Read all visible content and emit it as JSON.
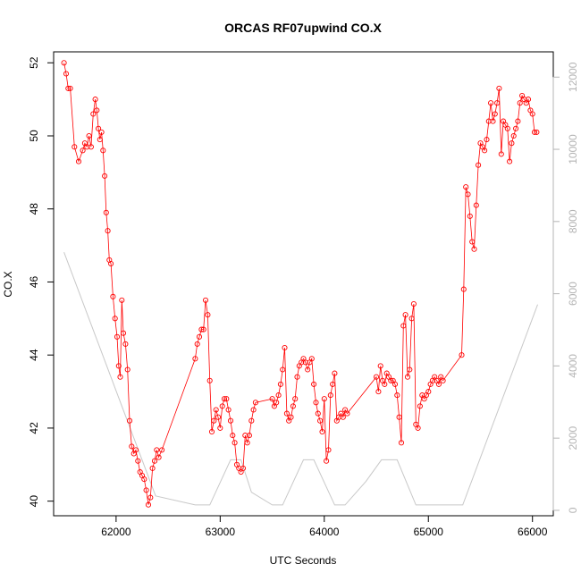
{
  "chart_data": {
    "type": "line",
    "title": "ORCAS RF07upwind CO.X",
    "xlabel": "UTC Seconds",
    "ylabel": "CO.X",
    "xlim": [
      61400,
      66200
    ],
    "ylim": [
      39.6,
      52.3
    ],
    "y2lim": [
      -150,
      12700
    ],
    "x_ticks": [
      62000,
      63000,
      64000,
      65000,
      66000
    ],
    "y_ticks": [
      40,
      42,
      44,
      46,
      48,
      50,
      52
    ],
    "y2_ticks": [
      0,
      2000,
      4000,
      6000,
      8000,
      10000,
      12000
    ],
    "grid": false,
    "colors": {
      "primary": "#ff0000",
      "secondary": "#c8c8c8",
      "axis": "#000000",
      "right_axis": "#b4b4b4"
    },
    "series": [
      {
        "axis": "left",
        "marker": "open-circle",
        "color": "#ff0000",
        "x": [
          61500,
          61520,
          61540,
          61560,
          61600,
          61640,
          61680,
          61700,
          61720,
          61740,
          61760,
          61780,
          61800,
          61815,
          61830,
          61845,
          61860,
          61875,
          61890,
          61905,
          61920,
          61935,
          61950,
          61970,
          61990,
          62010,
          62025,
          62040,
          62055,
          62070,
          62090,
          62110,
          62130,
          62150,
          62170,
          62190,
          62210,
          62230,
          62250,
          62270,
          62290,
          62310,
          62330,
          62350,
          62370,
          62390,
          62410,
          62440,
          62760,
          62780,
          62800,
          62820,
          62840,
          62860,
          62880,
          62900,
          62920,
          62940,
          62960,
          62980,
          63000,
          63020,
          63040,
          63060,
          63080,
          63100,
          63120,
          63140,
          63160,
          63180,
          63200,
          63220,
          63240,
          63260,
          63280,
          63300,
          63320,
          63340,
          63500,
          63520,
          63540,
          63560,
          63580,
          63600,
          63620,
          63640,
          63660,
          63680,
          63700,
          63720,
          63740,
          63760,
          63780,
          63800,
          63820,
          63840,
          63860,
          63880,
          63900,
          63920,
          63940,
          63960,
          63980,
          64000,
          64020,
          64040,
          64060,
          64080,
          64100,
          64120,
          64140,
          64160,
          64180,
          64200,
          64220,
          64500,
          64520,
          64540,
          64560,
          64580,
          64600,
          64620,
          64640,
          64660,
          64680,
          64700,
          64720,
          64740,
          64760,
          64780,
          64800,
          64820,
          64840,
          64860,
          64880,
          64900,
          64920,
          64940,
          64960,
          64980,
          65000,
          65020,
          65040,
          65060,
          65080,
          65100,
          65120,
          65140,
          65320,
          65340,
          65360,
          65380,
          65400,
          65420,
          65440,
          65460,
          65480,
          65500,
          65520,
          65540,
          65560,
          65580,
          65600,
          65620,
          65640,
          65660,
          65680,
          65700,
          65720,
          65740,
          65760,
          65780,
          65800,
          65820,
          65840,
          65860,
          65880,
          65900,
          65920,
          65940,
          65960,
          65980,
          66000,
          66020,
          66040
        ],
        "values": [
          52.0,
          51.7,
          51.3,
          51.3,
          49.7,
          49.3,
          49.6,
          49.8,
          49.7,
          50.0,
          49.7,
          50.6,
          51.0,
          50.7,
          50.2,
          49.9,
          50.1,
          49.6,
          48.9,
          47.9,
          47.4,
          46.6,
          46.5,
          45.6,
          45.0,
          44.5,
          43.7,
          43.4,
          45.5,
          44.6,
          44.3,
          43.6,
          42.2,
          41.5,
          41.3,
          41.4,
          41.1,
          40.8,
          40.7,
          40.6,
          40.3,
          39.9,
          40.1,
          40.9,
          41.1,
          41.4,
          41.2,
          41.4,
          43.9,
          44.3,
          44.5,
          44.7,
          44.7,
          45.5,
          45.1,
          43.3,
          41.9,
          42.2,
          42.5,
          42.3,
          42.0,
          42.6,
          42.8,
          42.8,
          42.5,
          42.2,
          41.8,
          41.6,
          41.0,
          40.9,
          40.8,
          40.9,
          41.8,
          41.6,
          41.8,
          42.2,
          42.5,
          42.7,
          42.8,
          42.6,
          42.7,
          42.9,
          43.2,
          43.6,
          44.2,
          42.4,
          42.2,
          42.3,
          42.6,
          42.8,
          43.4,
          43.7,
          43.8,
          43.9,
          43.8,
          43.6,
          43.8,
          43.9,
          43.2,
          42.7,
          42.4,
          42.2,
          41.9,
          42.8,
          41.1,
          41.4,
          42.9,
          43.2,
          43.5,
          42.2,
          42.3,
          42.4,
          42.3,
          42.5,
          42.4,
          43.4,
          43.0,
          43.7,
          43.3,
          43.2,
          43.5,
          43.4,
          43.3,
          43.3,
          43.2,
          42.9,
          42.3,
          41.6,
          44.8,
          45.1,
          43.4,
          43.6,
          45.0,
          45.4,
          42.1,
          42.0,
          42.6,
          42.9,
          42.8,
          42.9,
          43.0,
          43.2,
          43.3,
          43.4,
          43.3,
          43.2,
          43.4,
          43.3,
          44.0,
          45.8,
          48.6,
          48.4,
          47.8,
          47.1,
          46.9,
          48.1,
          49.2,
          49.8,
          49.7,
          49.6,
          49.9,
          50.4,
          50.9,
          50.4,
          50.6,
          50.9,
          51.3,
          49.5,
          50.4,
          50.3,
          50.2,
          49.3,
          49.8,
          50.0,
          50.2,
          50.4,
          50.9,
          51.1,
          51.0,
          50.9,
          51.0,
          50.7,
          50.6,
          50.1,
          50.1
        ],
        "bin_means_note": ""
      },
      {
        "axis": "right",
        "line_only": true,
        "color": "#c8c8c8",
        "x": [
          61500,
          62380,
          62760,
          62900,
          63100,
          63200,
          63300,
          63500,
          63600,
          63800,
          63900,
          64100,
          64200,
          64400,
          64550,
          64700,
          64880,
          65330,
          66050
        ],
        "values": [
          7150,
          400,
          150,
          150,
          1400,
          1400,
          500,
          150,
          150,
          1400,
          1400,
          150,
          150,
          800,
          1400,
          1400,
          150,
          150,
          5700
        ]
      }
    ]
  }
}
